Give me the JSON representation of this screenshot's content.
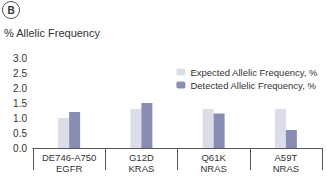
{
  "chart_data": {
    "type": "bar",
    "annotations": [
      "B"
    ],
    "ylabel": "% Allelic Frequency",
    "categories": [
      "DE746-A750\nEGFR",
      "G12D\nKRAS",
      "Q61K\nNRAS",
      "A59T\nNRAS"
    ],
    "series": [
      {
        "name": "Expected Allelic Frequency, %",
        "color": "#dcdde8",
        "values": [
          1.0,
          1.3,
          1.3,
          1.3
        ]
      },
      {
        "name": "Detected Allelic Frequency, %",
        "color": "#8a8db3",
        "values": [
          1.2,
          1.5,
          1.15,
          0.6
        ]
      }
    ],
    "ylim": [
      0,
      3
    ],
    "yticks": [
      {
        "value": 0,
        "label": "0.0"
      },
      {
        "value": 0.5,
        "label": "0.5"
      },
      {
        "value": 1,
        "label": "1.0"
      },
      {
        "value": 1.5,
        "label": "1.5"
      },
      {
        "value": 2,
        "label": "2.0"
      },
      {
        "value": 2.5,
        "label": "2.5"
      },
      {
        "value": 3,
        "label": "3.0"
      }
    ],
    "grid": false,
    "legend": "upper right"
  }
}
